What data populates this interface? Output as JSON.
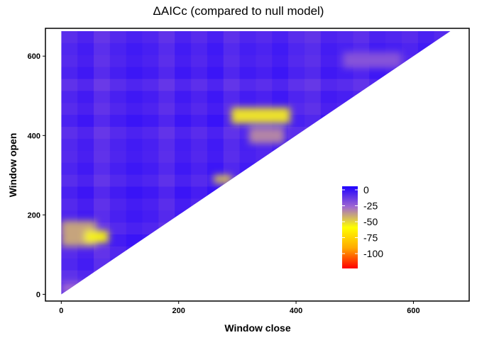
{
  "chart_data": {
    "type": "heatmap",
    "title": "ΔAICc (compared to null model)",
    "xlabel": "Window close",
    "ylabel": "Window open",
    "xlim": [
      0,
      695
    ],
    "ylim": [
      0,
      660
    ],
    "x_ticks": [
      "0",
      "200",
      "400",
      "600"
    ],
    "y_ticks": [
      "0",
      "200",
      "400",
      "600"
    ],
    "x_tick_values": [
      0,
      200,
      400,
      600
    ],
    "y_tick_values": [
      0,
      200,
      400,
      600
    ],
    "value_range": [
      -100,
      0
    ],
    "legend": {
      "placement": "inside-right",
      "labels": [
        "0",
        "-25",
        "-50",
        "-75",
        "-100"
      ],
      "values": [
        0,
        -25,
        -50,
        -75,
        -100
      ]
    },
    "colors": {
      "high": "#1e00ff",
      "mid": "#ffff00",
      "low": "#ff0000"
    },
    "grid": false,
    "region": "lower-triangle (window open ≤ window close)",
    "hotspots": [
      {
        "close": [
          0,
          60
        ],
        "open": [
          120,
          185
        ],
        "value": -35
      },
      {
        "close": [
          40,
          80
        ],
        "open": [
          130,
          160
        ],
        "value": -48
      },
      {
        "close": [
          290,
          390
        ],
        "open": [
          430,
          470
        ],
        "value": -45
      },
      {
        "close": [
          320,
          380
        ],
        "open": [
          380,
          420
        ],
        "value": -30
      },
      {
        "close": [
          480,
          580
        ],
        "open": [
          570,
          610
        ],
        "value": -20
      },
      {
        "close": [
          260,
          290
        ],
        "open": [
          280,
          300
        ],
        "value": -40
      },
      {
        "close": [
          130,
          170
        ],
        "open": [
          100,
          120
        ],
        "value": -20
      },
      {
        "close": [
          0,
          40
        ],
        "open": [
          0,
          30
        ],
        "value": -25
      }
    ]
  }
}
